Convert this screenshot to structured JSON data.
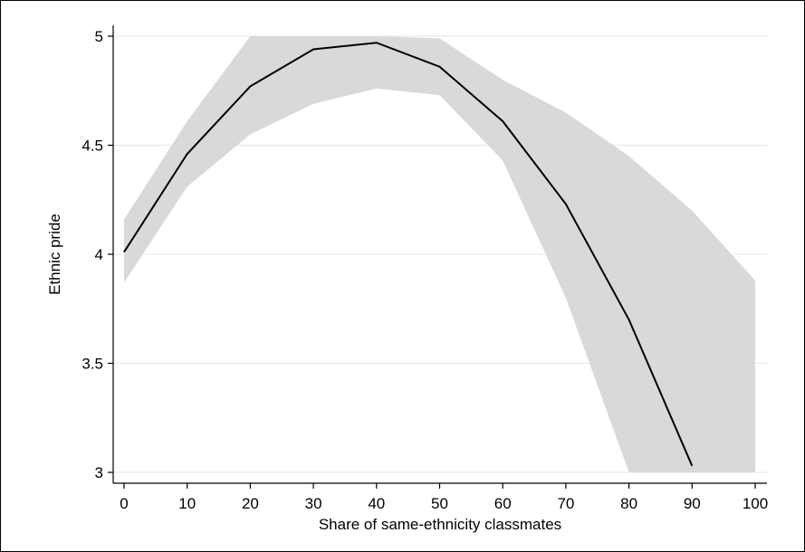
{
  "chart_data": {
    "type": "line",
    "title": "",
    "xlabel": "Share of same-ethnicity classmates",
    "ylabel": "Ethnic pride",
    "x_ticks": [
      0,
      10,
      20,
      30,
      40,
      50,
      60,
      70,
      80,
      90,
      100
    ],
    "y_ticks": [
      3,
      3.5,
      4,
      4.5,
      5
    ],
    "y_tick_labels": [
      "3",
      "3.5",
      "4",
      "4.5",
      "5"
    ],
    "xlim": [
      0,
      100
    ],
    "ylim": [
      3,
      5
    ],
    "grid": "horizontal",
    "line": {
      "x": [
        0,
        10,
        20,
        30,
        40,
        50,
        60,
        70,
        80,
        90
      ],
      "y": [
        4.01,
        4.46,
        4.77,
        4.94,
        4.97,
        4.86,
        4.61,
        4.23,
        3.7,
        3.03
      ]
    },
    "confidence_band": {
      "x": [
        0,
        10,
        20,
        30,
        40,
        50,
        60,
        70,
        80,
        90,
        100
      ],
      "upper": [
        4.16,
        4.61,
        5.0,
        5.0,
        5.0,
        4.99,
        4.8,
        4.65,
        4.45,
        4.2,
        3.88
      ],
      "lower": [
        3.87,
        4.31,
        4.55,
        4.69,
        4.76,
        4.73,
        4.43,
        3.8,
        3.0,
        3.0,
        3.0
      ]
    },
    "colors": {
      "line": "#000000",
      "band": "#d9d9d9",
      "grid": "#eaeaea"
    }
  }
}
